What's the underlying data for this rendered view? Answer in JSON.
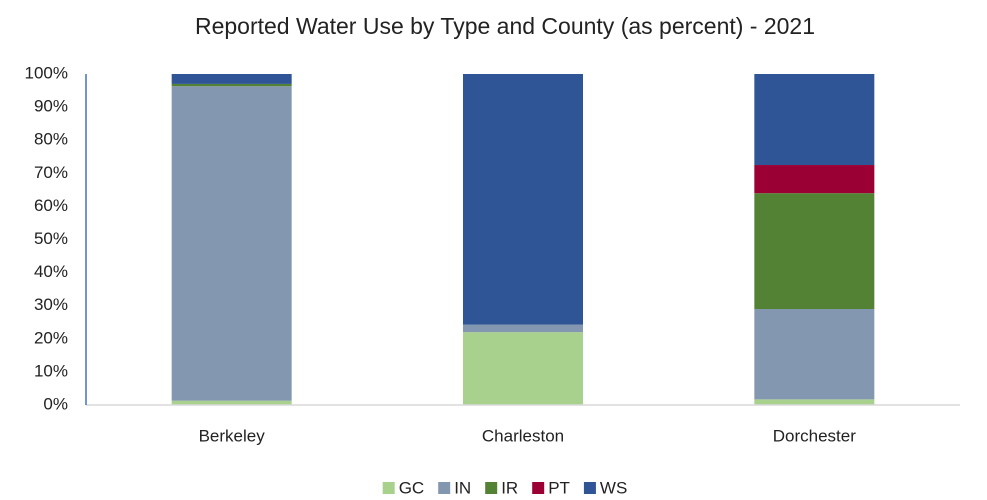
{
  "chart_data": {
    "type": "stacked_bar",
    "title": "Reported Water Use by Type and County (as percent) - 2021",
    "categories": [
      "Berkeley",
      "Charleston",
      "Dorchester"
    ],
    "series": [
      {
        "name": "GC",
        "color": "#a9d18e",
        "values": [
          1.3,
          22,
          1.7
        ]
      },
      {
        "name": "IN",
        "color": "#8497b0",
        "values": [
          95,
          2.3,
          27.3
        ]
      },
      {
        "name": "IR",
        "color": "#548235",
        "values": [
          0.7,
          0,
          35
        ]
      },
      {
        "name": "PT",
        "color": "#9b0034",
        "values": [
          0,
          0,
          8.5
        ]
      },
      {
        "name": "WS",
        "color": "#2f5597",
        "values": [
          3,
          75.7,
          27.5
        ]
      }
    ],
    "ylim": [
      0,
      100
    ],
    "yticks": [
      {
        "value": 0,
        "label": "0%"
      },
      {
        "value": 10,
        "label": "10%"
      },
      {
        "value": 20,
        "label": "20%"
      },
      {
        "value": 30,
        "label": "30%"
      },
      {
        "value": 40,
        "label": "40%"
      },
      {
        "value": 50,
        "label": "50%"
      },
      {
        "value": 60,
        "label": "60%"
      },
      {
        "value": 70,
        "label": "70%"
      },
      {
        "value": 80,
        "label": "80%"
      },
      {
        "value": 90,
        "label": "90%"
      },
      {
        "value": 100,
        "label": "100%"
      }
    ],
    "grid": false,
    "legend": "bottom"
  }
}
